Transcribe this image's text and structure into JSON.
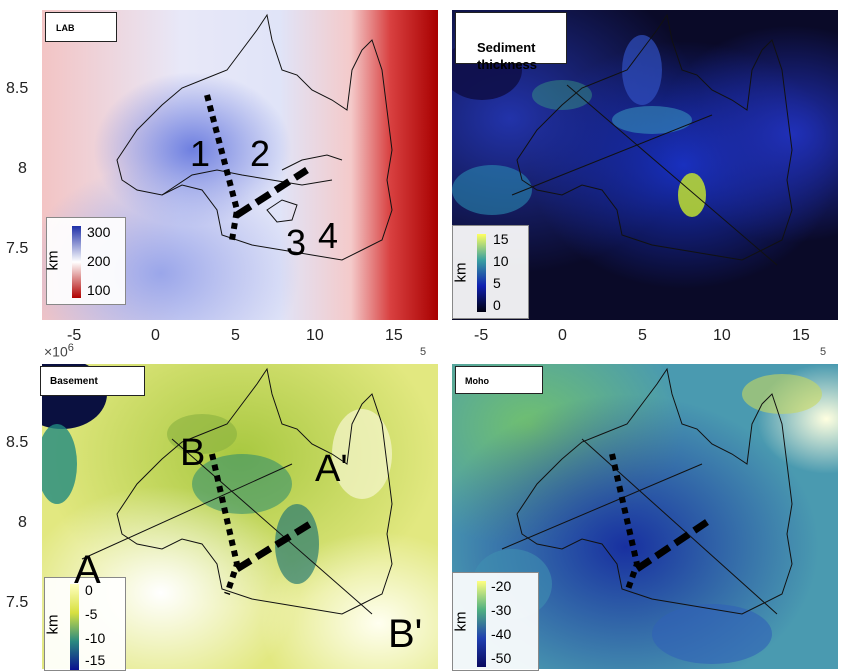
{
  "panels": {
    "lab": {
      "title": "LAB",
      "colorbar": {
        "unit": "km",
        "labels": [
          "300",
          "200",
          "100"
        ],
        "colors": [
          "#1f2fa8",
          "#ffffff",
          "#b00000"
        ]
      },
      "annotations": [
        "1",
        "2",
        "3",
        "4"
      ]
    },
    "sediment": {
      "title": "Sediment\nthickness",
      "colorbar": {
        "unit": "km",
        "labels": [
          "15",
          "10",
          "5",
          "0"
        ],
        "colors": [
          "#ffff60",
          "#3aa0a0",
          "#1020b0",
          "#000010"
        ]
      }
    },
    "basement": {
      "title": "Basement",
      "colorbar": {
        "unit": "km",
        "labels": [
          "0",
          "-5",
          "-10",
          "-15"
        ],
        "colors": [
          "#ffffc0",
          "#d8e040",
          "#2a8a80",
          "#0a1090"
        ]
      },
      "annotations": [
        "B",
        "A'",
        "A",
        "B'"
      ]
    },
    "moho": {
      "title": "Moho",
      "colorbar": {
        "unit": "km",
        "labels": [
          "-20",
          "-30",
          "-40",
          "-50"
        ],
        "colors": [
          "#ffff80",
          "#50b080",
          "#2040b0",
          "#0a0a60"
        ]
      }
    }
  },
  "axes": {
    "y_ticks": [
      "8.5",
      "8",
      "7.5"
    ],
    "x_ticks": [
      "-5",
      "0",
      "5",
      "10",
      "15"
    ],
    "y_exponent_base": "×10",
    "y_exponent_power": "6",
    "x_exponent_power": "5"
  }
}
